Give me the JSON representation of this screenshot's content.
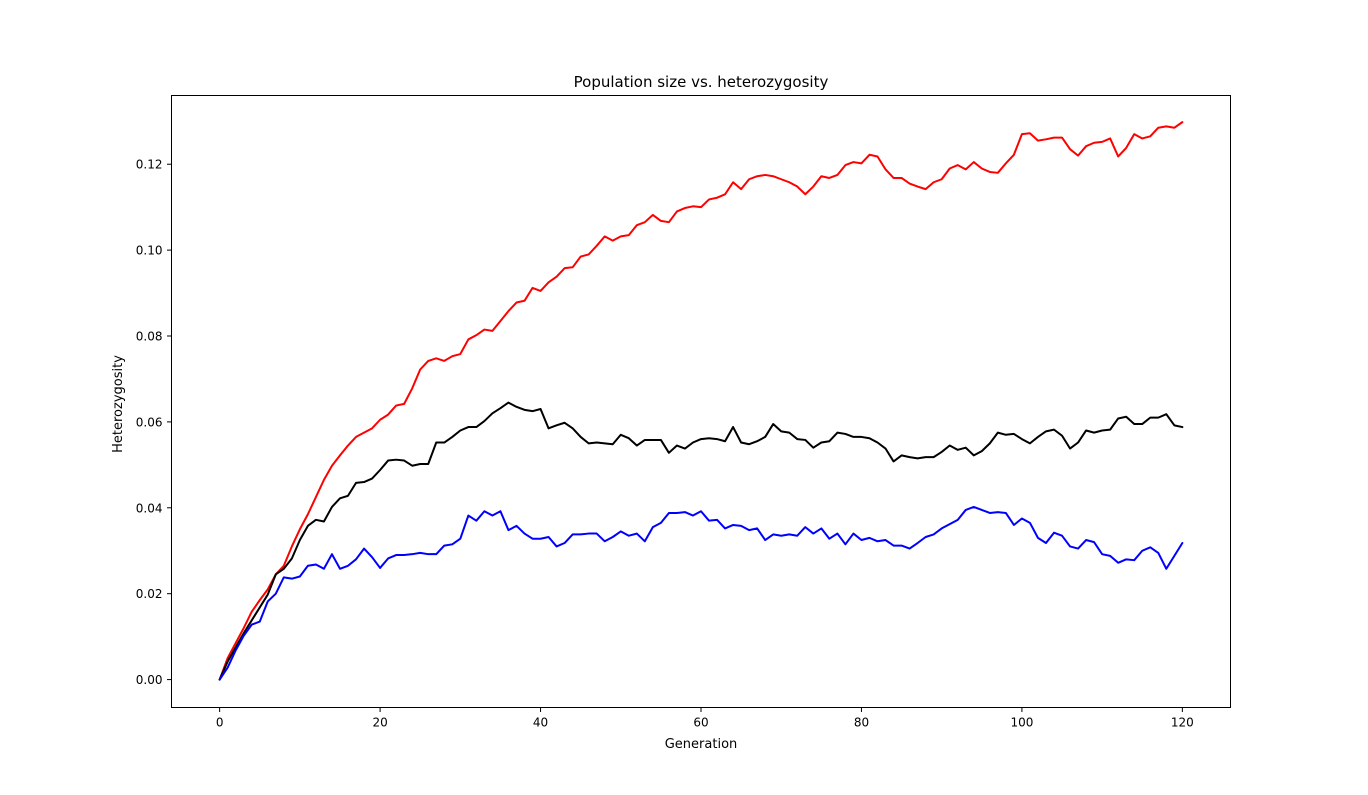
{
  "chart_data": {
    "type": "line",
    "title": "Population size vs. heterozygosity",
    "xlabel": "Generation",
    "ylabel": "Heterozygosity",
    "xlim": [
      -6,
      126
    ],
    "ylim": [
      -0.0065,
      0.136
    ],
    "xticks": [
      0,
      20,
      40,
      60,
      80,
      100,
      120
    ],
    "yticks": [
      0.0,
      0.02,
      0.04,
      0.06,
      0.08,
      0.1,
      0.12
    ],
    "xtick_labels": [
      "0",
      "20",
      "40",
      "60",
      "80",
      "100",
      "120"
    ],
    "ytick_labels": [
      "0.00",
      "0.02",
      "0.04",
      "0.06",
      "0.08",
      "0.10",
      "0.12"
    ],
    "grid": false,
    "legend": false,
    "x": [
      0,
      1,
      2,
      3,
      4,
      5,
      6,
      7,
      8,
      9,
      10,
      11,
      12,
      13,
      14,
      15,
      16,
      17,
      18,
      19,
      20,
      21,
      22,
      23,
      24,
      25,
      26,
      27,
      28,
      29,
      30,
      31,
      32,
      33,
      34,
      35,
      36,
      37,
      38,
      39,
      40,
      41,
      42,
      43,
      44,
      45,
      46,
      47,
      48,
      49,
      50,
      51,
      52,
      53,
      54,
      55,
      56,
      57,
      58,
      59,
      60,
      61,
      62,
      63,
      64,
      65,
      66,
      67,
      68,
      69,
      70,
      71,
      72,
      73,
      74,
      75,
      76,
      77,
      78,
      79,
      80,
      81,
      82,
      83,
      84,
      85,
      86,
      87,
      88,
      89,
      90,
      91,
      92,
      93,
      94,
      95,
      96,
      97,
      98,
      99,
      100,
      101,
      102,
      103,
      104,
      105,
      106,
      107,
      108,
      109,
      110,
      111,
      112,
      113,
      114,
      115,
      116,
      117,
      118,
      119,
      120
    ],
    "series": [
      {
        "color": "#ff0000",
        "values": [
          0,
          0.005,
          0.0085,
          0.012,
          0.0158,
          0.0185,
          0.021,
          0.0245,
          0.0265,
          0.031,
          0.035,
          0.0385,
          0.0425,
          0.0465,
          0.0498,
          0.0522,
          0.0545,
          0.0565,
          0.0575,
          0.0585,
          0.0605,
          0.0617,
          0.0638,
          0.0642,
          0.0678,
          0.0722,
          0.0742,
          0.0748,
          0.0742,
          0.0753,
          0.0758,
          0.0792,
          0.0802,
          0.0815,
          0.0812,
          0.0835,
          0.0858,
          0.0878,
          0.0882,
          0.0912,
          0.0905,
          0.0925,
          0.0938,
          0.0958,
          0.096,
          0.0985,
          0.099,
          0.101,
          0.1032,
          0.1022,
          0.1032,
          0.1035,
          0.1058,
          0.1065,
          0.1082,
          0.1068,
          0.1065,
          0.109,
          0.1098,
          0.1102,
          0.11,
          0.1118,
          0.1122,
          0.113,
          0.1158,
          0.1142,
          0.1165,
          0.1172,
          0.1175,
          0.1172,
          0.1165,
          0.1158,
          0.1148,
          0.113,
          0.1148,
          0.1172,
          0.1168,
          0.1175,
          0.1198,
          0.1205,
          0.1202,
          0.1222,
          0.1218,
          0.1188,
          0.1168,
          0.1168,
          0.1155,
          0.1148,
          0.1142,
          0.1158,
          0.1165,
          0.119,
          0.1198,
          0.1188,
          0.1205,
          0.119,
          0.1182,
          0.118,
          0.1202,
          0.1222,
          0.127,
          0.1272,
          0.1255,
          0.1258,
          0.1262,
          0.1262,
          0.1235,
          0.122,
          0.1242,
          0.125,
          0.1252,
          0.126,
          0.1218,
          0.1238,
          0.127,
          0.126,
          0.1265,
          0.1285,
          0.1288,
          0.1285,
          0.1298
        ]
      },
      {
        "color": "#000000",
        "values": [
          0,
          0.0042,
          0.0075,
          0.0108,
          0.0138,
          0.0168,
          0.0198,
          0.0245,
          0.0258,
          0.0282,
          0.0325,
          0.0358,
          0.0372,
          0.0368,
          0.0402,
          0.0422,
          0.0428,
          0.0458,
          0.046,
          0.0468,
          0.0488,
          0.051,
          0.0512,
          0.051,
          0.0498,
          0.0502,
          0.0502,
          0.0552,
          0.0552,
          0.0565,
          0.058,
          0.0588,
          0.0588,
          0.0602,
          0.062,
          0.0632,
          0.0645,
          0.0635,
          0.0628,
          0.0625,
          0.063,
          0.0585,
          0.0592,
          0.0598,
          0.0585,
          0.0565,
          0.055,
          0.0552,
          0.055,
          0.0548,
          0.057,
          0.0562,
          0.0545,
          0.0558,
          0.0558,
          0.0558,
          0.0528,
          0.0545,
          0.0538,
          0.0552,
          0.056,
          0.0562,
          0.056,
          0.0555,
          0.0588,
          0.0552,
          0.0548,
          0.0555,
          0.0565,
          0.0595,
          0.0578,
          0.0575,
          0.056,
          0.0558,
          0.054,
          0.0552,
          0.0555,
          0.0575,
          0.0572,
          0.0565,
          0.0565,
          0.0562,
          0.0552,
          0.0538,
          0.0508,
          0.0522,
          0.0518,
          0.0515,
          0.0518,
          0.0518,
          0.053,
          0.0545,
          0.0535,
          0.054,
          0.0522,
          0.0532,
          0.055,
          0.0575,
          0.057,
          0.0572,
          0.056,
          0.055,
          0.0565,
          0.0578,
          0.0582,
          0.0568,
          0.0538,
          0.0552,
          0.058,
          0.0575,
          0.058,
          0.0582,
          0.0608,
          0.0612,
          0.0595,
          0.0595,
          0.061,
          0.061,
          0.0618,
          0.0592,
          0.0588
        ]
      },
      {
        "color": "#0000ff",
        "values": [
          0,
          0.0028,
          0.0068,
          0.0102,
          0.0128,
          0.0135,
          0.0182,
          0.02,
          0.0238,
          0.0235,
          0.024,
          0.0265,
          0.0268,
          0.0258,
          0.0292,
          0.0258,
          0.0265,
          0.028,
          0.0305,
          0.0285,
          0.026,
          0.0282,
          0.029,
          0.029,
          0.0292,
          0.0295,
          0.0292,
          0.0292,
          0.0312,
          0.0315,
          0.0328,
          0.0382,
          0.037,
          0.0392,
          0.0382,
          0.0392,
          0.0348,
          0.0358,
          0.034,
          0.0328,
          0.0328,
          0.0332,
          0.031,
          0.0318,
          0.0338,
          0.0338,
          0.034,
          0.034,
          0.0322,
          0.0332,
          0.0345,
          0.0335,
          0.034,
          0.0322,
          0.0355,
          0.0365,
          0.0388,
          0.0388,
          0.039,
          0.0382,
          0.0392,
          0.037,
          0.0372,
          0.0352,
          0.036,
          0.0358,
          0.0348,
          0.0352,
          0.0325,
          0.0338,
          0.0335,
          0.0338,
          0.0335,
          0.0355,
          0.034,
          0.0352,
          0.0328,
          0.034,
          0.0315,
          0.034,
          0.0325,
          0.033,
          0.0322,
          0.0325,
          0.0312,
          0.0312,
          0.0305,
          0.0318,
          0.0332,
          0.0338,
          0.0352,
          0.0362,
          0.0372,
          0.0395,
          0.0402,
          0.0395,
          0.0388,
          0.039,
          0.0388,
          0.036,
          0.0375,
          0.0365,
          0.033,
          0.0318,
          0.0342,
          0.0335,
          0.031,
          0.0305,
          0.0325,
          0.032,
          0.0292,
          0.0288,
          0.0272,
          0.028,
          0.0278,
          0.03,
          0.0308,
          0.0295,
          0.0258,
          0.0288,
          0.0318
        ]
      }
    ]
  }
}
